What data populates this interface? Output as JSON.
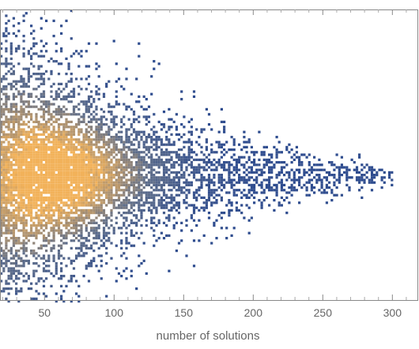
{
  "chart_data": {
    "type": "heatmap",
    "title": "",
    "xlabel": "number of solutions",
    "ylabel": "",
    "x_ticks": [
      50,
      100,
      150,
      200,
      250,
      300
    ],
    "xlim": [
      18,
      318
    ],
    "color_scale": {
      "low": "#2e4c8f",
      "mid": "#5f6e8a",
      "high": "#f2b25a"
    },
    "density_profile": {
      "description_none": "",
      "peak_x": 55,
      "x_extent": [
        18,
        300
      ],
      "envelope": [
        {
          "x": 20,
          "half_width": 0.78
        },
        {
          "x": 50,
          "half_width": 0.6
        },
        {
          "x": 100,
          "half_width": 0.42
        },
        {
          "x": 150,
          "half_width": 0.3
        },
        {
          "x": 200,
          "half_width": 0.2
        },
        {
          "x": 250,
          "half_width": 0.12
        },
        {
          "x": 300,
          "half_width": 0.05
        }
      ]
    },
    "grid": false,
    "legend": "none"
  }
}
